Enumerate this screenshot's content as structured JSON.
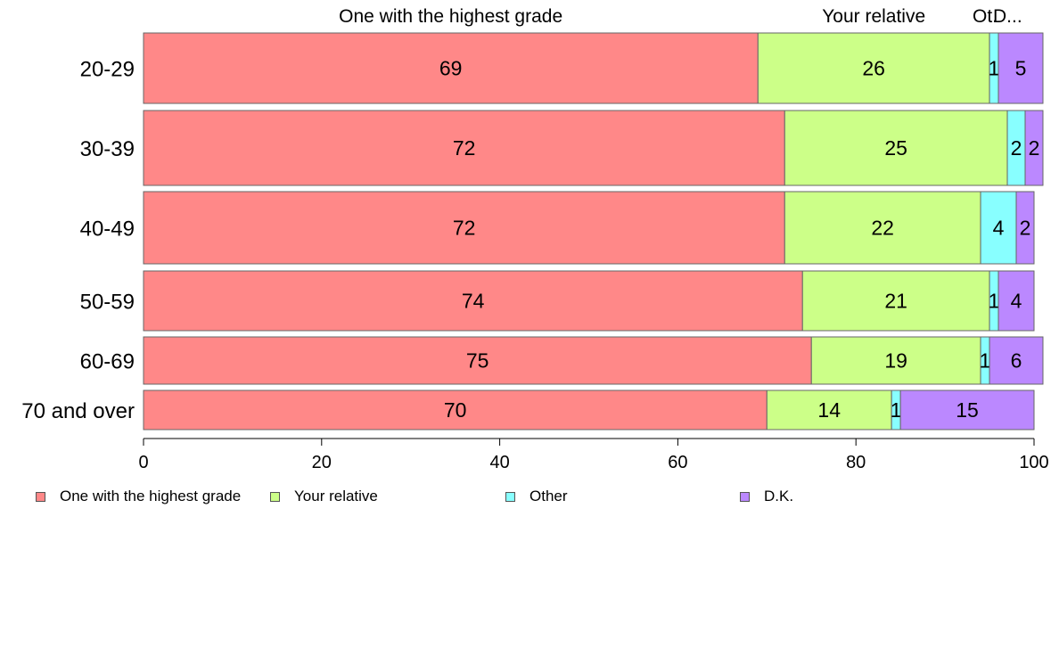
{
  "chart_data": {
    "type": "bar",
    "orientation": "horizontal",
    "stacked": true,
    "categories": [
      "20-29",
      "30-39",
      "40-49",
      "50-59",
      "60-69",
      "70 and over"
    ],
    "series": [
      {
        "name": "One with the highest grade",
        "color": "#ff8888",
        "values": [
          69,
          72,
          72,
          74,
          75,
          70
        ]
      },
      {
        "name": "Your relative",
        "color": "#ccff88",
        "values": [
          26,
          25,
          22,
          21,
          19,
          14
        ]
      },
      {
        "name": "Other",
        "color": "#88ffff",
        "values": [
          1,
          2,
          4,
          1,
          1,
          1
        ]
      },
      {
        "name": "D.K.",
        "color": "#bb88ff",
        "values": [
          5,
          2,
          2,
          4,
          6,
          15
        ]
      }
    ],
    "top_labels": [
      "One with the highest grade",
      "Your relative",
      "Ot.",
      "D..."
    ],
    "xlim": [
      0,
      100
    ],
    "x_ticks": [
      "0",
      "20",
      "40",
      "60",
      "80",
      "100"
    ],
    "grid": false,
    "legend_position": "bottom"
  }
}
